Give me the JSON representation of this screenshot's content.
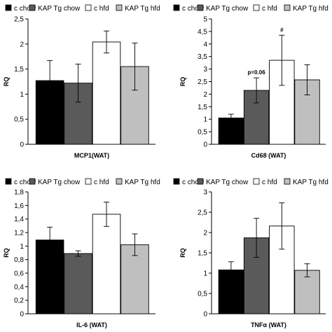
{
  "chart_data": [
    {
      "type": "bar",
      "legend": [
        "c chow",
        "KAP Tg chow",
        "c hfd",
        "KAP Tg hfd"
      ],
      "legend_position": "top",
      "categories": [
        "c chow",
        "KAP Tg chow",
        "c hfd",
        "KAP Tg hfd"
      ],
      "values": [
        1.27,
        1.22,
        2.04,
        1.55
      ],
      "errors": [
        0.4,
        0.38,
        0.22,
        0.47
      ],
      "colors": [
        "#000000",
        "#5a5a5a",
        "#ffffff",
        "#bfbfbf"
      ],
      "xlabel": "MCP1(WAT)",
      "ylabel": "RQ",
      "ylim": [
        0,
        2.5
      ],
      "yticks": [
        "0",
        "0,5",
        "1",
        "1,5",
        "2",
        "2,5"
      ],
      "annotations": [],
      "grid": false
    },
    {
      "type": "bar",
      "legend": [
        "c chow",
        "KAP Tg chow",
        "c hfd",
        "KAP Tg hfd"
      ],
      "legend_position": "top",
      "categories": [
        "c chow",
        "KAP Tg chow",
        "c hfd",
        "KAP Tg hfd"
      ],
      "values": [
        1.05,
        2.15,
        3.35,
        2.57
      ],
      "errors": [
        0.15,
        0.5,
        1.0,
        0.6
      ],
      "colors": [
        "#000000",
        "#5a5a5a",
        "#ffffff",
        "#bfbfbf"
      ],
      "xlabel": "Cd68 (WAT)",
      "ylabel": "RQ",
      "ylim": [
        0,
        5
      ],
      "yticks": [
        "0",
        "0,5",
        "1",
        "1,5",
        "2",
        "2,5",
        "3",
        "3,5",
        "4",
        "4,5",
        "5"
      ],
      "annotations": [
        {
          "text": "p=0.06",
          "bar": 1
        },
        {
          "text": "#",
          "bar": 2
        }
      ],
      "grid": false
    },
    {
      "type": "bar",
      "legend": [
        "c chow",
        "KAP Tg chow",
        "c hfd",
        "KAP Tg hfd"
      ],
      "legend_position": "top",
      "categories": [
        "c chow",
        "KAP Tg chow",
        "c hfd",
        "KAP Tg hfd"
      ],
      "values": [
        1.09,
        0.89,
        1.47,
        1.02
      ],
      "errors": [
        0.19,
        0.04,
        0.18,
        0.16
      ],
      "colors": [
        "#000000",
        "#5a5a5a",
        "#ffffff",
        "#bfbfbf"
      ],
      "xlabel": "IL-6 (WAT)",
      "ylabel": "RQ",
      "ylim": [
        0,
        1.8
      ],
      "yticks": [
        "0",
        "0,2",
        "0,4",
        "0,6",
        "0,8",
        "1",
        "1,2",
        "1,4",
        "1,6",
        "1,8"
      ],
      "annotations": [],
      "grid": false
    },
    {
      "type": "bar",
      "legend": [
        "c chow",
        "KAP Tg chow",
        "c hfd",
        "KAP Tg hfd"
      ],
      "legend_position": "top",
      "categories": [
        "c chow",
        "KAP Tg chow",
        "c hfd",
        "KAP Tg hfd"
      ],
      "values": [
        1.08,
        1.87,
        2.16,
        1.07
      ],
      "errors": [
        0.2,
        0.48,
        0.57,
        0.16
      ],
      "colors": [
        "#000000",
        "#5a5a5a",
        "#ffffff",
        "#bfbfbf"
      ],
      "xlabel": "TNFα (WAT)",
      "ylabel": "RQ",
      "ylim": [
        0,
        3
      ],
      "yticks": [
        "0",
        "0,5",
        "1",
        "1,5",
        "2",
        "2,5",
        "3"
      ],
      "annotations": [],
      "grid": false
    }
  ]
}
